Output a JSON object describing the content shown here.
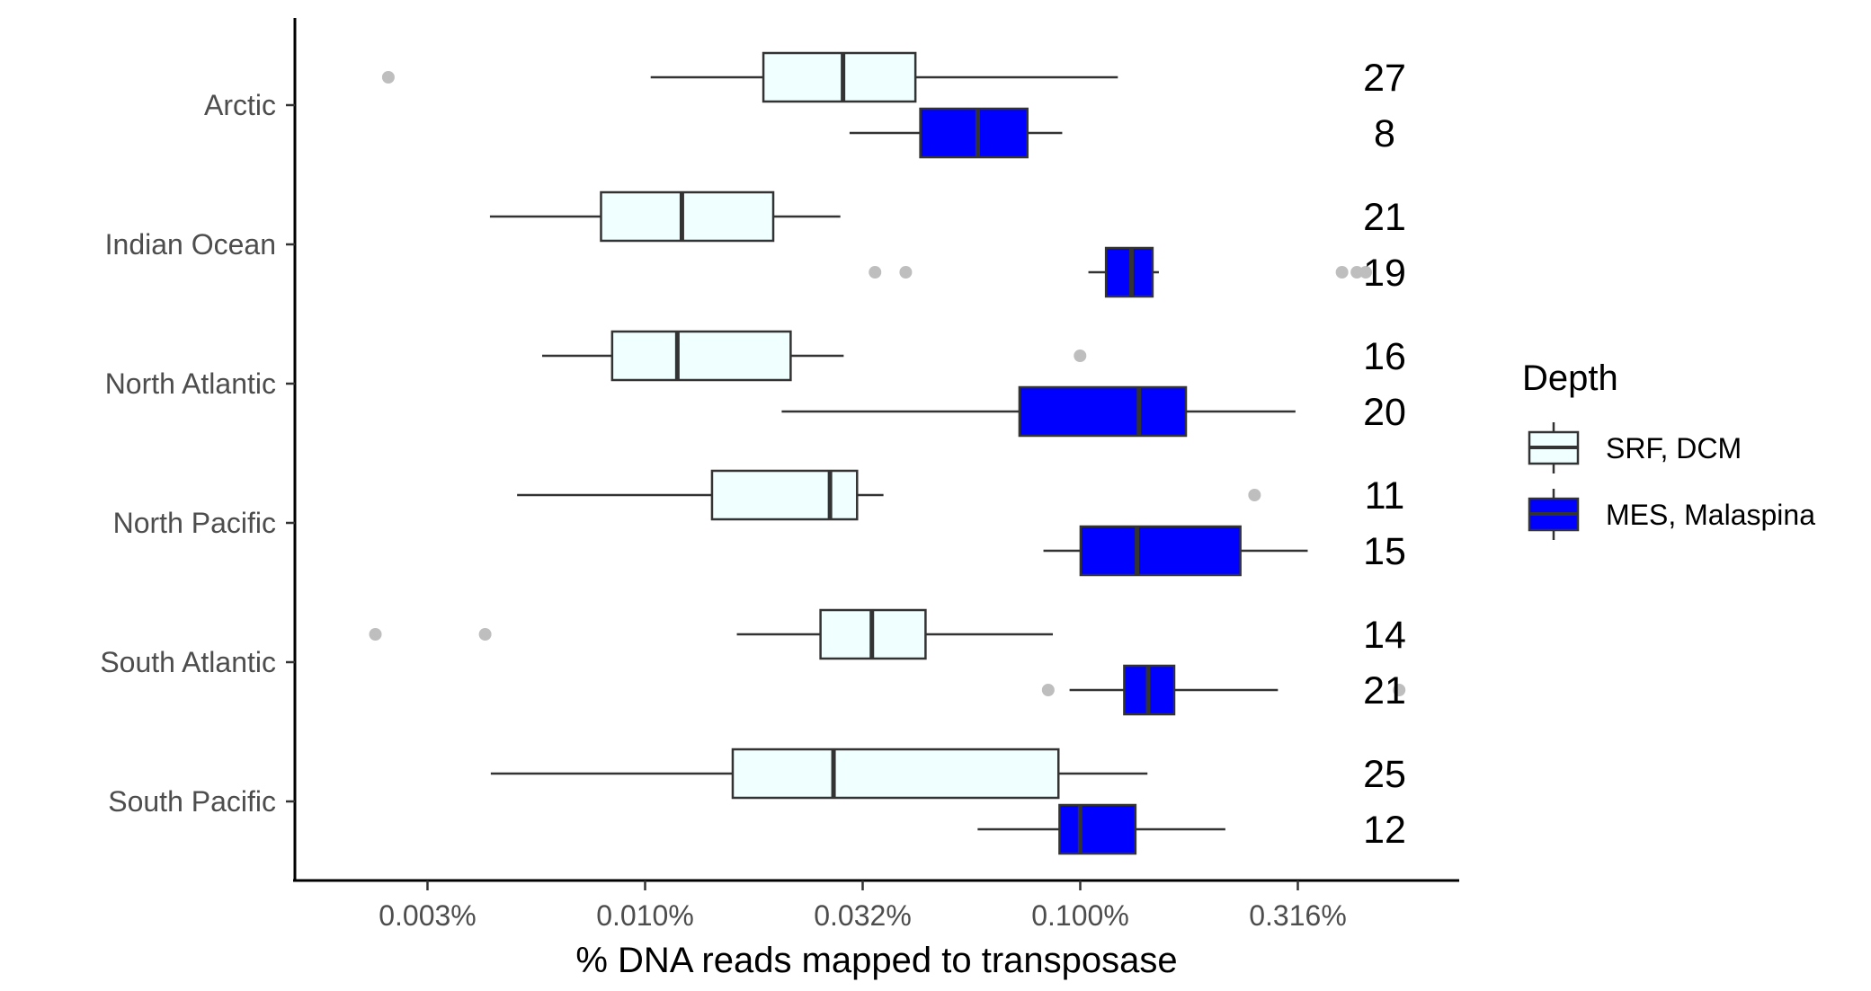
{
  "chart_data": {
    "type": "boxplot",
    "orientation": "horizontal",
    "xlabel": "% DNA reads mapped to transposase",
    "x_scale": "log10",
    "xlim": [
      0.0017,
      0.78
    ],
    "x_ticks": [
      {
        "value": 0.003162,
        "label": "0.003%"
      },
      {
        "value": 0.01,
        "label": "0.010%"
      },
      {
        "value": 0.031623,
        "label": "0.032%"
      },
      {
        "value": 0.1,
        "label": "0.100%"
      },
      {
        "value": 0.316228,
        "label": "0.316%"
      }
    ],
    "categories": [
      "Arctic",
      "Indian Ocean",
      "North Atlantic",
      "North Pacific",
      "South Atlantic",
      "South Pacific"
    ],
    "legend": {
      "title": "Depth",
      "position": "right",
      "items": [
        {
          "label": "SRF, DCM",
          "color": "#f0ffff"
        },
        {
          "label": "MES, Malaspina",
          "color": "#0000ff"
        }
      ]
    },
    "colors": {
      "srf": "#f0ffff",
      "mes": "#0000ff",
      "outline": "#333333",
      "outlier": "#bebebe"
    },
    "series": [
      {
        "name": "SRF, DCM",
        "boxes": [
          {
            "category": "Arctic",
            "min": 0.0103,
            "q1": 0.0187,
            "median": 0.0285,
            "q3": 0.0418,
            "max": 0.122,
            "outliers": [
              0.00257
            ],
            "n": "27"
          },
          {
            "category": "Indian Ocean",
            "min": 0.0044,
            "q1": 0.00792,
            "median": 0.01215,
            "q3": 0.0197,
            "max": 0.0281,
            "outliers": [],
            "n": "21"
          },
          {
            "category": "North Atlantic",
            "min": 0.0058,
            "q1": 0.0084,
            "median": 0.01186,
            "q3": 0.0216,
            "max": 0.0286,
            "outliers": [
              0.0999
            ],
            "n": "16"
          },
          {
            "category": "North Pacific",
            "min": 0.00508,
            "q1": 0.01425,
            "median": 0.0266,
            "q3": 0.0307,
            "max": 0.0353,
            "outliers": [
              0.2515
            ],
            "n": "11"
          },
          {
            "category": "South Atlantic",
            "min": 0.01625,
            "q1": 0.0253,
            "median": 0.0332,
            "q3": 0.0441,
            "max": 0.0865,
            "outliers": [
              0.0024,
              0.00429
            ],
            "n": "14"
          },
          {
            "category": "South Pacific",
            "min": 0.00442,
            "q1": 0.0159,
            "median": 0.0271,
            "q3": 0.0891,
            "max": 0.1427,
            "outliers": [],
            "n": "25"
          }
        ]
      },
      {
        "name": "MES, Malaspina",
        "boxes": [
          {
            "category": "Arctic",
            "min": 0.0295,
            "q1": 0.0429,
            "median": 0.0581,
            "q3": 0.0756,
            "max": 0.0909,
            "outliers": [],
            "n": "8"
          },
          {
            "category": "Indian Ocean",
            "min": 0.1044,
            "q1": 0.1146,
            "median": 0.1311,
            "q3": 0.1466,
            "max": 0.1516,
            "outliers": [
              0.03376,
              0.03972,
              0.3995,
              0.4322,
              0.4529
            ],
            "n": "19"
          },
          {
            "category": "North Atlantic",
            "min": 0.0206,
            "q1": 0.0725,
            "median": 0.1364,
            "q3": 0.1749,
            "max": 0.3123,
            "outliers": [],
            "n": "20"
          },
          {
            "category": "North Pacific",
            "min": 0.0823,
            "q1": 0.1002,
            "median": 0.135,
            "q3": 0.2334,
            "max": 0.3332,
            "outliers": [],
            "n": "15"
          },
          {
            "category": "South Atlantic",
            "min": 0.0945,
            "q1": 0.1262,
            "median": 0.1432,
            "q3": 0.1644,
            "max": 0.2846,
            "outliers": [
              0.0844,
              0.5406
            ],
            "n": "21"
          },
          {
            "category": "South Pacific",
            "min": 0.0581,
            "q1": 0.0896,
            "median": 0.0999,
            "q3": 0.1339,
            "max": 0.2155,
            "outliers": [],
            "n": "12"
          }
        ]
      }
    ]
  }
}
